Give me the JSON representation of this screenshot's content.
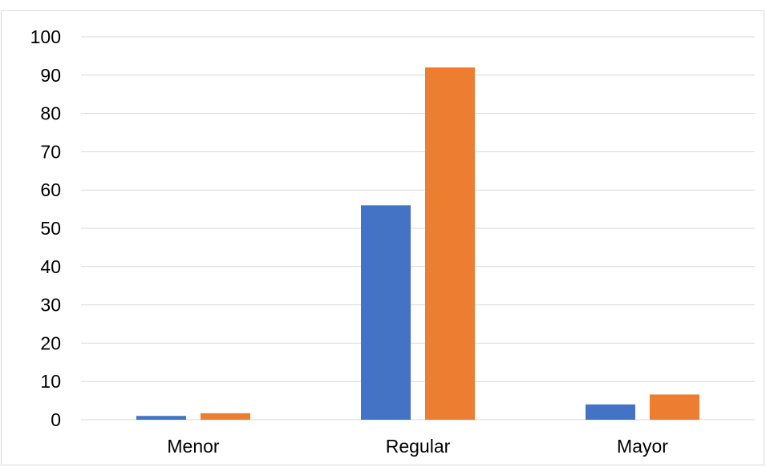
{
  "chart_data": {
    "type": "bar",
    "categories": [
      "Menor",
      "Regular",
      "Mayor"
    ],
    "series": [
      {
        "values": [
          1,
          56,
          4
        ],
        "color": "#4472c4"
      },
      {
        "values": [
          1.7,
          92,
          6.6
        ],
        "color": "#ed7d31"
      }
    ],
    "ylim": [
      0,
      100
    ],
    "yticks": [
      "0",
      "10",
      "20",
      "30",
      "40",
      "50",
      "60",
      "70",
      "80",
      "90",
      "100"
    ],
    "grid": true,
    "legend": "none",
    "gridline_color": "#d9d9d9"
  }
}
